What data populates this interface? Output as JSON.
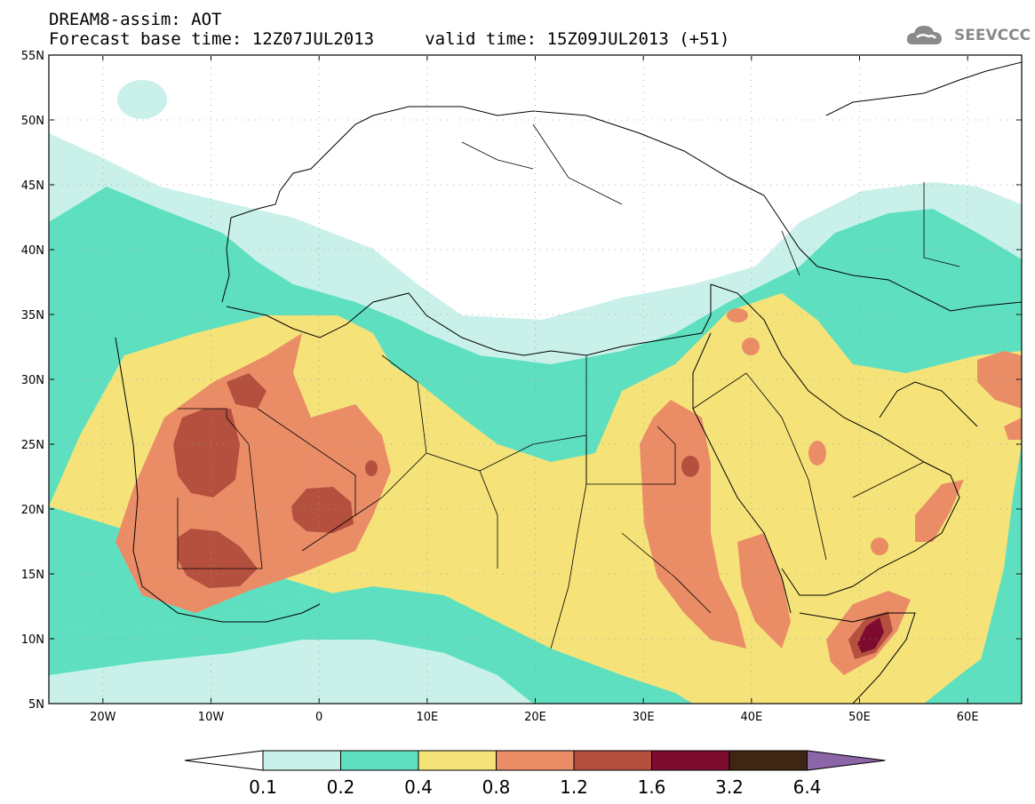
{
  "header": {
    "title_line1": "DREAM8-assim: AOT",
    "title_line2": "Forecast base time: 12Z07JUL2013     valid time: 15Z09JUL2013 (+51)"
  },
  "logo": {
    "text": "SEEVCCC",
    "icon": "cloud-icon"
  },
  "map": {
    "lon_range": [
      -25,
      65
    ],
    "lat_range": [
      5,
      55
    ],
    "lat_ticks": [
      "55N",
      "50N",
      "45N",
      "40N",
      "35N",
      "30N",
      "25N",
      "20N",
      "15N",
      "10N",
      "5N"
    ],
    "lon_ticks": [
      "20W",
      "10W",
      "0",
      "10E",
      "20E",
      "30E",
      "40E",
      "50E",
      "60E"
    ]
  },
  "colorbar": {
    "labels": [
      "0.1",
      "0.2",
      "0.4",
      "0.8",
      "1.2",
      "1.6",
      "3.2",
      "6.4"
    ],
    "colors": [
      "#ffffff",
      "#c9f1ea",
      "#5ee0c0",
      "#f5e37a",
      "#ea8d67",
      "#b5503f",
      "#7d0b2f",
      "#3d2614",
      "#8c64a8"
    ]
  }
}
